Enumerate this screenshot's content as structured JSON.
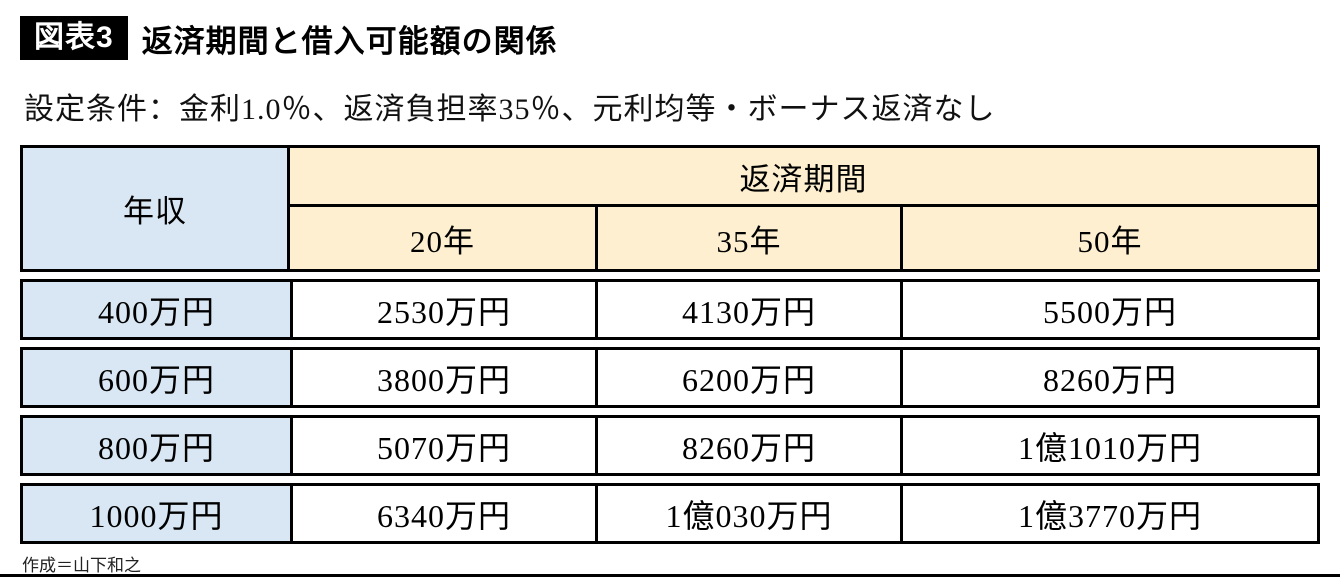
{
  "header": {
    "badge": "図表3",
    "title": "返済期間と借入可能額の関係",
    "condition": "設定条件：金利1.0％、返済負担率35％、元利均等・ボーナス返済なし"
  },
  "footer": {
    "credit": "作成＝山下和之"
  },
  "colors": {
    "income_column_bg": "#d8e7f3",
    "header_row_bg": "#fdefcf",
    "border": "#000000",
    "badge_bg": "#000000"
  },
  "chart_data": {
    "type": "table",
    "title": "返済期間と借入可能額の関係",
    "subtitle": "設定条件：金利1.0％、返済負担率35％、元利均等・ボーナス返済なし",
    "row_header": "年収",
    "column_group": "返済期間",
    "columns": [
      "20年",
      "35年",
      "50年"
    ],
    "rows": [
      "400万円",
      "600万円",
      "800万円",
      "1000万円"
    ],
    "values": [
      [
        "2530万円",
        "4130万円",
        "5500万円"
      ],
      [
        "3800万円",
        "6200万円",
        "8260万円"
      ],
      [
        "5070万円",
        "8260万円",
        "1億1010万円"
      ],
      [
        "6340万円",
        "1億030万円",
        "1億3770万円"
      ]
    ]
  }
}
